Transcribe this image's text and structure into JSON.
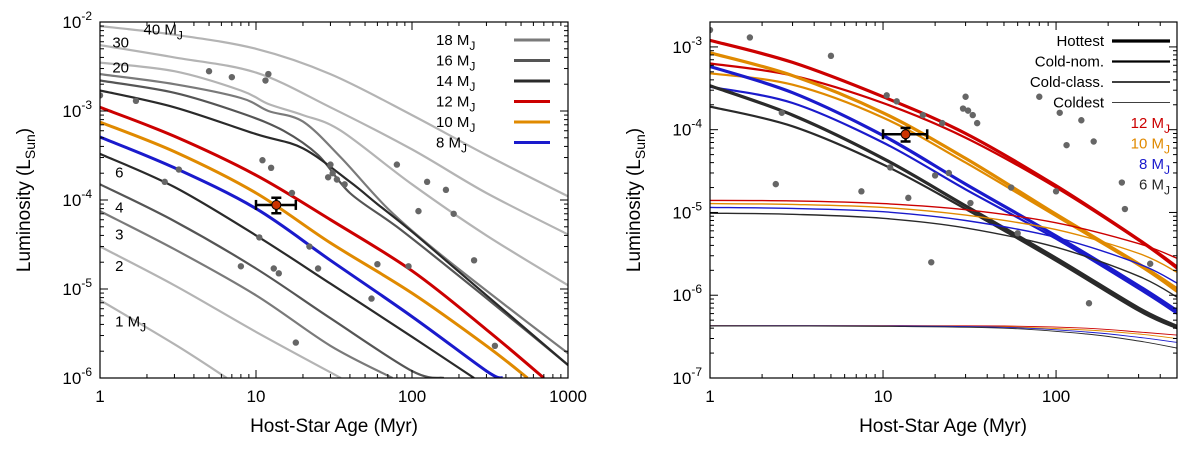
{
  "chart_data": [
    {
      "type": "line",
      "xlabel": "Host-Star Age (Myr)",
      "ylabel": {
        "main": "Luminosity (L",
        "sub": "Sun",
        "close": ")"
      },
      "xscale": "log",
      "yscale": "log",
      "xlim": [
        1,
        1000
      ],
      "ylim": [
        1e-06,
        0.01
      ],
      "xticks": [
        {
          "v": 1,
          "label": "1"
        },
        {
          "v": 10,
          "label": "10"
        },
        {
          "v": 100,
          "label": "100"
        },
        {
          "v": 1000,
          "label": "1000"
        }
      ],
      "yticks": [
        {
          "v": 1e-06,
          "label": "10",
          "exp": "-6"
        },
        {
          "v": 1e-05,
          "label": "10",
          "exp": "-5"
        },
        {
          "v": 0.0001,
          "label": "10",
          "exp": "-4"
        },
        {
          "v": 0.001,
          "label": "10",
          "exp": "-3"
        },
        {
          "v": 0.01,
          "label": "10",
          "exp": "-2"
        }
      ],
      "legend": {
        "position": "top-right",
        "entries": [
          {
            "label": "18 M",
            "sub": "J",
            "color": "#7a7a7a"
          },
          {
            "label": "16 M",
            "sub": "J",
            "color": "#555555"
          },
          {
            "label": "14 M",
            "sub": "J",
            "color": "#2a2a2a"
          },
          {
            "label": "12 M",
            "sub": "J",
            "color": "#cc0000"
          },
          {
            "label": "10 M",
            "sub": "J",
            "color": "#e08a00"
          },
          {
            "label": "8 M",
            "sub": "J",
            "color": "#1a1acc"
          }
        ]
      },
      "curve_labels": [
        {
          "text": "40 M",
          "sub": "J",
          "x": 1.9,
          "y": 0.0072
        },
        {
          "text": "30",
          "x": 1.2,
          "y": 0.0052
        },
        {
          "text": "20",
          "x": 1.2,
          "y": 0.0027
        },
        {
          "text": "6",
          "x": 1.25,
          "y": 0.00018
        },
        {
          "text": "4",
          "x": 1.25,
          "y": 7.2e-05
        },
        {
          "text": "3",
          "x": 1.25,
          "y": 3.6e-05
        },
        {
          "text": "2",
          "x": 1.25,
          "y": 1.6e-05
        },
        {
          "text": "1 M",
          "sub": "J",
          "x": 1.25,
          "y": 3.8e-06
        }
      ],
      "series": [
        {
          "name": "40 MJ",
          "color": "#b4b4b4",
          "width": 2.2,
          "x": [
            1,
            3,
            10,
            30,
            100,
            300,
            1000
          ],
          "y": [
            0.009,
            0.0072,
            0.005,
            0.0026,
            0.0009,
            0.00032,
            0.00011
          ]
        },
        {
          "name": "30 MJ",
          "color": "#b4b4b4",
          "width": 2.2,
          "x": [
            1,
            3,
            10,
            30,
            100,
            300,
            1000
          ],
          "y": [
            0.0055,
            0.004,
            0.0027,
            0.0011,
            0.00037,
            0.00012,
            4.1e-05
          ]
        },
        {
          "name": "20 MJ",
          "color": "#b4b4b4",
          "width": 2.2,
          "x": [
            1,
            3,
            8,
            12,
            20,
            35,
            100,
            300,
            1000
          ],
          "y": [
            0.0035,
            0.0028,
            0.0017,
            0.0012,
            0.0009,
            0.0006,
            0.00015,
            4e-05,
            1.1e-05
          ]
        },
        {
          "name": "18 MJ",
          "color": "#7a7a7a",
          "width": 2.2,
          "x": [
            1,
            3,
            8,
            12,
            20,
            35,
            70,
            150,
            400,
            1000
          ],
          "y": [
            0.0026,
            0.002,
            0.0014,
            0.001,
            0.00076,
            0.0003,
            8e-05,
            2.5e-05,
            6.5e-06,
            1.9e-06
          ]
        },
        {
          "name": "16 MJ",
          "color": "#555555",
          "width": 2.2,
          "x": [
            1,
            3,
            8,
            15,
            25,
            40,
            80,
            200,
            500,
            1000
          ],
          "y": [
            0.0022,
            0.0016,
            0.00095,
            0.0006,
            0.00032,
            0.00012,
            5e-05,
            1.4e-05,
            3.8e-06,
            1.4e-06
          ]
        },
        {
          "name": "14 MJ",
          "color": "#2a2a2a",
          "width": 2.2,
          "x": [
            1,
            3,
            10,
            20,
            40,
            60,
            100,
            300,
            1000
          ],
          "y": [
            0.0017,
            0.0011,
            0.00055,
            0.00038,
            0.00016,
            9e-05,
            4.4e-05,
            8.5e-06,
            1.4e-06
          ]
        },
        {
          "name": "12 MJ",
          "color": "#cc0000",
          "width": 3,
          "x": [
            1,
            3,
            10,
            30,
            100,
            300,
            700
          ],
          "y": [
            0.0011,
            0.00052,
            0.00019,
            6e-05,
            1.6e-05,
            3.5e-06,
            1e-06
          ]
        },
        {
          "name": "10 MJ",
          "color": "#e08a00",
          "width": 3,
          "x": [
            1,
            3,
            10,
            30,
            100,
            300,
            550
          ],
          "y": [
            0.00075,
            0.00035,
            0.00012,
            3.3e-05,
            9e-06,
            2.3e-06,
            1e-06
          ]
        },
        {
          "name": "8 MJ",
          "color": "#1a1acc",
          "width": 3,
          "x": [
            1,
            3,
            10,
            30,
            100,
            300,
            380
          ],
          "y": [
            0.00051,
            0.00023,
            8e-05,
            2.1e-05,
            4.9e-06,
            1.2e-06,
            1e-06
          ]
        },
        {
          "name": "6 MJ",
          "color": "#2a2a2a",
          "width": 2.2,
          "x": [
            1,
            3,
            10,
            30,
            100,
            250
          ],
          "y": [
            0.00033,
            0.00014,
            4e-05,
            1.15e-05,
            2.9e-06,
            1e-06
          ]
        },
        {
          "name": "4 MJ",
          "color": "#555555",
          "width": 2.2,
          "x": [
            1,
            3,
            10,
            30,
            100,
            160
          ],
          "y": [
            0.00015,
            5.8e-05,
            1.7e-05,
            4.7e-06,
            1.2e-06,
            1e-06
          ]
        },
        {
          "name": "3 MJ",
          "color": "#7a7a7a",
          "width": 2.2,
          "x": [
            1,
            3,
            10,
            30,
            75
          ],
          "y": [
            7.5e-05,
            2.8e-05,
            8.5e-06,
            2.3e-06,
            1e-06
          ]
        },
        {
          "name": "2 MJ",
          "color": "#b4b4b4",
          "width": 2.2,
          "x": [
            1,
            3,
            10,
            35
          ],
          "y": [
            3e-05,
            1.1e-05,
            3.3e-06,
            1e-06
          ]
        },
        {
          "name": "1 MJ",
          "color": "#b4b4b4",
          "width": 2.2,
          "x": [
            1,
            3,
            6.5
          ],
          "y": [
            7.5e-06,
            2.4e-06,
            1e-06
          ]
        }
      ],
      "scatter": {
        "color": "#666666",
        "x": [
          1,
          1.7,
          2.6,
          3.2,
          5,
          7,
          8,
          10.5,
          11,
          11.5,
          12,
          12.5,
          13,
          14,
          17,
          18,
          22,
          25,
          29,
          30,
          31,
          33,
          37,
          55,
          60,
          80,
          95,
          110,
          125,
          165,
          185,
          250,
          340
        ],
        "y": [
          0.0015,
          0.0013,
          0.00016,
          0.00022,
          0.0028,
          0.0024,
          1.8e-05,
          3.8e-05,
          0.00028,
          0.0022,
          0.0026,
          0.00023,
          1.7e-05,
          1.5e-05,
          0.00012,
          2.5e-06,
          3e-05,
          1.7e-05,
          0.00018,
          0.00025,
          0.0002,
          0.00017,
          0.00015,
          7.8e-06,
          1.9e-05,
          0.00025,
          1.8e-05,
          7.5e-05,
          0.00016,
          0.00013,
          7e-05,
          2.1e-05,
          2.3e-06
        ]
      },
      "highlight": {
        "x": 13.5,
        "y": 8.8e-05,
        "xerr": [
          10,
          18
        ],
        "yerr": [
          7.1e-05,
          0.000106
        ],
        "color": "#cc3300"
      }
    },
    {
      "type": "line",
      "xlabel": "Host-Star Age (Myr)",
      "ylabel": {
        "main": "Luminosity (L",
        "sub": "Sun",
        "close": ")"
      },
      "xscale": "log",
      "yscale": "log",
      "xlim": [
        1,
        500
      ],
      "ylim": [
        1e-07,
        0.002
      ],
      "xticks": [
        {
          "v": 1,
          "label": "1"
        },
        {
          "v": 10,
          "label": "10"
        },
        {
          "v": 100,
          "label": "100"
        }
      ],
      "yticks": [
        {
          "v": 1e-07,
          "label": "10",
          "exp": "-7"
        },
        {
          "v": 1e-06,
          "label": "10",
          "exp": "-6"
        },
        {
          "v": 1e-05,
          "label": "10",
          "exp": "-5"
        },
        {
          "v": 0.0001,
          "label": "10",
          "exp": "-4"
        },
        {
          "v": 0.001,
          "label": "10",
          "exp": "-3"
        }
      ],
      "legend": {
        "position": "top-right",
        "entries": [
          {
            "label": "Hottest",
            "color": "#000000",
            "width": 3.2
          },
          {
            "label": "Cold-nom.",
            "color": "#000000",
            "width": 2.2
          },
          {
            "label": "Cold-class.",
            "color": "#000000",
            "width": 1.4
          },
          {
            "label": "Coldest",
            "color": "#000000",
            "width": 0.8
          }
        ],
        "colors": [
          {
            "label": "12 M",
            "sub": "J",
            "color": "#cc0000"
          },
          {
            "label": "10 M",
            "sub": "J",
            "color": "#e08a00"
          },
          {
            "label": "8 M",
            "sub": "J",
            "color": "#1a1acc"
          },
          {
            "label": "6 M",
            "sub": "J",
            "color": "#2a2a2a"
          }
        ]
      },
      "series": [
        {
          "name": "12 MJ hottest",
          "color": "#cc0000",
          "width": 3.2,
          "x": [
            1,
            3,
            10,
            30,
            100,
            300,
            500
          ],
          "y": [
            0.0012,
            0.00065,
            0.00025,
            9e-05,
            2.1e-05,
            4.7e-06,
            2.2e-06
          ]
        },
        {
          "name": "12 MJ cold-nom",
          "color": "#cc0000",
          "width": 2.2,
          "x": [
            1,
            3,
            10,
            30,
            100,
            300,
            500
          ],
          "y": [
            0.00063,
            0.00045,
            0.00021,
            8e-05,
            2e-05,
            4.6e-06,
            2.1e-06
          ]
        },
        {
          "name": "10 MJ hottest",
          "color": "#e08a00",
          "width": 3.2,
          "x": [
            1,
            3,
            10,
            30,
            100,
            300,
            500
          ],
          "y": [
            0.00085,
            0.00045,
            0.00016,
            4.5e-05,
            9.5e-06,
            2.4e-06,
            1.2e-06
          ]
        },
        {
          "name": "10 MJ cold-nom",
          "color": "#e08a00",
          "width": 2.2,
          "x": [
            1,
            3,
            10,
            30,
            100,
            300,
            500
          ],
          "y": [
            0.00048,
            0.00035,
            0.00014,
            4e-05,
            9e-06,
            2.3e-06,
            1.1e-06
          ]
        },
        {
          "name": "8 MJ hottest",
          "color": "#1a1acc",
          "width": 3.2,
          "x": [
            1,
            3,
            10,
            30,
            100,
            300,
            500
          ],
          "y": [
            0.00058,
            0.00028,
            8.5e-05,
            2.2e-05,
            5.2e-06,
            1.3e-06,
            6.5e-07
          ]
        },
        {
          "name": "8 MJ cold-nom",
          "color": "#1a1acc",
          "width": 2.2,
          "x": [
            1,
            3,
            10,
            30,
            100,
            300,
            500
          ],
          "y": [
            0.00033,
            0.00021,
            7e-05,
            1.9e-05,
            4.8e-06,
            1.2e-06,
            6e-07
          ]
        },
        {
          "name": "6 MJ hottest",
          "color": "#2a2a2a",
          "width": 3.2,
          "x": [
            1,
            3,
            10,
            30,
            100,
            300,
            500
          ],
          "y": [
            0.00034,
            0.00015,
            4.5e-05,
            1.2e-05,
            2.8e-06,
            7e-07,
            4.2e-07
          ]
        },
        {
          "name": "6 MJ cold-nom",
          "color": "#2a2a2a",
          "width": 2.2,
          "x": [
            1,
            3,
            10,
            30,
            100,
            300,
            500
          ],
          "y": [
            0.00019,
            0.00011,
            3.8e-05,
            1.1e-05,
            2.6e-06,
            6.5e-07,
            4e-07
          ]
        },
        {
          "name": "12 MJ cold-class",
          "color": "#cc0000",
          "width": 1.4,
          "x": [
            1,
            3,
            10,
            30,
            100,
            300,
            500
          ],
          "y": [
            1.4e-05,
            1.38e-05,
            1.28e-05,
            1.08e-05,
            7.5e-06,
            4.2e-06,
            2.8e-06
          ]
        },
        {
          "name": "10 MJ cold-class",
          "color": "#e08a00",
          "width": 1.4,
          "x": [
            1,
            3,
            10,
            30,
            100,
            300,
            500
          ],
          "y": [
            1.28e-05,
            1.25e-05,
            1.15e-05,
            9.3e-06,
            6.2e-06,
            3.2e-06,
            1.9e-06
          ]
        },
        {
          "name": "8 MJ cold-class",
          "color": "#1a1acc",
          "width": 1.4,
          "x": [
            1,
            3,
            10,
            30,
            100,
            300,
            500
          ],
          "y": [
            1.15e-05,
            1.12e-05,
            1.02e-05,
            8e-06,
            5e-06,
            2.4e-06,
            1.4e-06
          ]
        },
        {
          "name": "6 MJ cold-class",
          "color": "#2a2a2a",
          "width": 1.4,
          "x": [
            1,
            3,
            10,
            30,
            100,
            300,
            500
          ],
          "y": [
            9.8e-06,
            9.5e-06,
            8.5e-06,
            6.5e-06,
            3.8e-06,
            1.7e-06,
            9.5e-07
          ]
        },
        {
          "name": "12 MJ coldest",
          "color": "#cc0000",
          "width": 0.9,
          "x": [
            1,
            10,
            50,
            150,
            300,
            500
          ],
          "y": [
            4.3e-07,
            4.3e-07,
            4.25e-07,
            4e-07,
            3.6e-07,
            3.3e-07
          ]
        },
        {
          "name": "10 MJ coldest",
          "color": "#e08a00",
          "width": 0.9,
          "x": [
            1,
            10,
            50,
            150,
            300,
            500
          ],
          "y": [
            4.3e-07,
            4.3e-07,
            4.15e-07,
            3.8e-07,
            3.4e-07,
            3e-07
          ]
        },
        {
          "name": "8 MJ coldest",
          "color": "#1a1acc",
          "width": 0.9,
          "x": [
            1,
            10,
            50,
            150,
            300,
            500
          ],
          "y": [
            4.28e-07,
            4.26e-07,
            4.1e-07,
            3.6e-07,
            3.1e-07,
            2.7e-07
          ]
        },
        {
          "name": "6 MJ coldest",
          "color": "#2a2a2a",
          "width": 0.9,
          "x": [
            1,
            10,
            50,
            150,
            300,
            500
          ],
          "y": [
            4.25e-07,
            4.2e-07,
            4e-07,
            3.4e-07,
            2.8e-07,
            2.3e-07
          ]
        }
      ],
      "scatter": {
        "color": "#666666",
        "x": [
          1,
          1.7,
          2.4,
          2.6,
          5,
          7.5,
          10.5,
          11,
          12,
          14,
          17,
          19,
          20,
          22,
          24,
          29,
          30,
          31,
          32,
          33,
          35,
          55,
          60,
          80,
          100,
          105,
          115,
          140,
          155,
          165,
          240,
          250,
          350
        ],
        "y": [
          0.0016,
          0.0013,
          2.2e-05,
          0.00016,
          0.00078,
          1.8e-05,
          0.00026,
          3.5e-05,
          0.00022,
          1.5e-05,
          0.00015,
          2.5e-06,
          2.8e-05,
          0.00012,
          3e-05,
          0.00018,
          0.00025,
          0.00017,
          1.3e-05,
          0.00015,
          0.00012,
          2e-05,
          5.6e-06,
          0.00025,
          1.8e-05,
          0.00016,
          6.5e-05,
          0.00013,
          8e-07,
          7.2e-05,
          2.3e-05,
          1.1e-05,
          2.4e-06
        ]
      },
      "highlight": {
        "x": 13.5,
        "y": 8.8e-05,
        "xerr": [
          10,
          18
        ],
        "yerr": [
          7.2e-05,
          0.000105
        ],
        "color": "#cc3300"
      }
    }
  ]
}
